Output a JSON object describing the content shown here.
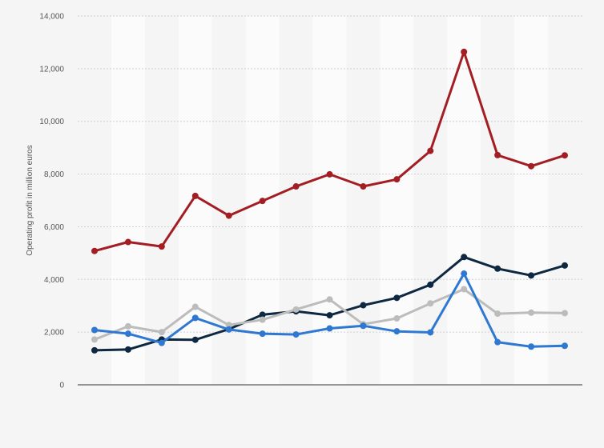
{
  "chart_data": {
    "type": "line",
    "title": "",
    "xlabel": "",
    "ylabel": "Operating profit in million euros",
    "ylim": [
      0,
      14000
    ],
    "yticks": [
      0,
      2000,
      4000,
      6000,
      8000,
      10000,
      12000,
      14000
    ],
    "ytick_labels": [
      "0",
      "2,000",
      "4,000",
      "6,000",
      "8,000",
      "10,000",
      "12,000",
      "14,000"
    ],
    "x": [
      1,
      2,
      3,
      4,
      5,
      6,
      7,
      8,
      9,
      10,
      11,
      12,
      13,
      14,
      15
    ],
    "grid": true,
    "legend": "none",
    "series": [
      {
        "color": "#a31e22",
        "values": [
          5080,
          5420,
          5250,
          7170,
          6420,
          6980,
          7530,
          7990,
          7530,
          7800,
          8880,
          12640,
          8720,
          8300,
          8710
        ]
      },
      {
        "color": "#0d2840",
        "values": [
          1310,
          1340,
          1720,
          1710,
          2110,
          2660,
          2790,
          2640,
          3020,
          3300,
          3800,
          4850,
          4410,
          4150,
          4530
        ]
      },
      {
        "color": "#bcbcbc",
        "values": [
          1720,
          2220,
          2000,
          2960,
          2270,
          2470,
          2860,
          3240,
          2300,
          2520,
          3090,
          3630,
          2700,
          2740,
          2720
        ]
      },
      {
        "color": "#2e78d2",
        "values": [
          2080,
          1940,
          1590,
          2540,
          2100,
          1940,
          1910,
          2140,
          2240,
          2030,
          1990,
          4220,
          1620,
          1450,
          1480
        ]
      }
    ]
  }
}
